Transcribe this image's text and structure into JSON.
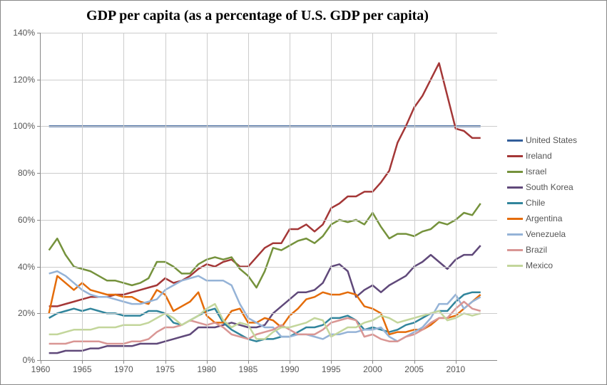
{
  "chart": {
    "type": "line",
    "title": "GDP per capita (as a percentage of U.S. GDP per capita)",
    "title_fontsize": 20,
    "title_fontweight": "bold",
    "font_family_title": "Times New Roman, serif",
    "font_family_axis": "Arial, sans-serif",
    "axis_fontsize": 12,
    "axis_color": "#595959",
    "background_color": "#ffffff",
    "border_color": "#888888",
    "grid_color": "#cccccc",
    "line_width": 2.5,
    "x": {
      "min": 1960,
      "max": 2015,
      "ticks": [
        1960,
        1965,
        1970,
        1975,
        1980,
        1985,
        1990,
        1995,
        2000,
        2005,
        2010
      ]
    },
    "y": {
      "min": 0,
      "max": 140,
      "suffix": "%",
      "ticks": [
        0,
        20,
        40,
        60,
        80,
        100,
        120,
        140
      ]
    },
    "years": [
      1961,
      1962,
      1963,
      1964,
      1965,
      1966,
      1967,
      1968,
      1969,
      1970,
      1971,
      1972,
      1973,
      1974,
      1975,
      1976,
      1977,
      1978,
      1979,
      1980,
      1981,
      1982,
      1983,
      1984,
      1985,
      1986,
      1987,
      1988,
      1989,
      1990,
      1991,
      1992,
      1993,
      1994,
      1995,
      1996,
      1997,
      1998,
      1999,
      2000,
      2001,
      2002,
      2003,
      2004,
      2005,
      2006,
      2007,
      2008,
      2009,
      2010,
      2011,
      2012,
      2013
    ],
    "series": [
      {
        "name": "United States",
        "color": "#325e9a",
        "data": [
          100,
          100,
          100,
          100,
          100,
          100,
          100,
          100,
          100,
          100,
          100,
          100,
          100,
          100,
          100,
          100,
          100,
          100,
          100,
          100,
          100,
          100,
          100,
          100,
          100,
          100,
          100,
          100,
          100,
          100,
          100,
          100,
          100,
          100,
          100,
          100,
          100,
          100,
          100,
          100,
          100,
          100,
          100,
          100,
          100,
          100,
          100,
          100,
          100,
          100,
          100,
          100,
          100
        ]
      },
      {
        "name": "Ireland",
        "color": "#a43737",
        "data": [
          23,
          23,
          24,
          25,
          26,
          27,
          27,
          27,
          28,
          28,
          29,
          30,
          31,
          32,
          35,
          33,
          34,
          36,
          39,
          41,
          40,
          42,
          43,
          40,
          40,
          44,
          48,
          50,
          50,
          56,
          56,
          58,
          55,
          58,
          65,
          67,
          70,
          70,
          72,
          72,
          76,
          81,
          93,
          100,
          108,
          113,
          120,
          127,
          113,
          99,
          98,
          95,
          95
        ]
      },
      {
        "name": "Israel",
        "color": "#75923c",
        "data": [
          47,
          52,
          45,
          40,
          39,
          38,
          36,
          34,
          34,
          33,
          32,
          33,
          35,
          42,
          42,
          40,
          37,
          37,
          41,
          43,
          44,
          43,
          44,
          39,
          36,
          31,
          38,
          48,
          47,
          49,
          51,
          52,
          50,
          53,
          58,
          60,
          59,
          60,
          58,
          63,
          57,
          52,
          54,
          54,
          53,
          55,
          56,
          59,
          58,
          60,
          63,
          62,
          67
        ]
      },
      {
        "name": "South Korea",
        "color": "#60497a",
        "data": [
          3,
          3,
          4,
          4,
          4,
          5,
          5,
          6,
          6,
          6,
          6,
          7,
          7,
          7,
          8,
          9,
          10,
          11,
          14,
          14,
          14,
          15,
          16,
          15,
          14,
          14,
          15,
          20,
          23,
          26,
          29,
          29,
          30,
          33,
          40,
          41,
          38,
          27,
          30,
          32,
          29,
          32,
          34,
          36,
          40,
          42,
          45,
          42,
          39,
          43,
          45,
          45,
          49
        ]
      },
      {
        "name": "Chile",
        "color": "#31859c",
        "data": [
          18,
          20,
          21,
          22,
          21,
          22,
          21,
          20,
          20,
          19,
          19,
          19,
          21,
          21,
          20,
          16,
          15,
          17,
          19,
          21,
          22,
          16,
          13,
          11,
          9,
          8,
          9,
          9,
          10,
          10,
          12,
          14,
          14,
          15,
          18,
          18,
          19,
          17,
          13,
          14,
          13,
          12,
          13,
          15,
          16,
          18,
          20,
          21,
          21,
          25,
          28,
          29,
          29
        ]
      },
      {
        "name": "Argentina",
        "color": "#e46c0a",
        "data": [
          20,
          36,
          33,
          30,
          33,
          30,
          29,
          28,
          28,
          27,
          27,
          25,
          24,
          30,
          28,
          21,
          23,
          25,
          29,
          19,
          16,
          16,
          21,
          22,
          16,
          16,
          18,
          17,
          14,
          19,
          22,
          26,
          27,
          29,
          28,
          28,
          29,
          28,
          23,
          22,
          20,
          11,
          12,
          12,
          13,
          13,
          15,
          18,
          18,
          19,
          22,
          25,
          28
        ]
      },
      {
        "name": "Venezuela",
        "color": "#95b3d7",
        "data": [
          37,
          38,
          36,
          33,
          30,
          28,
          27,
          27,
          26,
          25,
          24,
          24,
          25,
          26,
          30,
          32,
          34,
          35,
          36,
          34,
          34,
          34,
          32,
          24,
          18,
          16,
          14,
          14,
          10,
          10,
          11,
          11,
          10,
          9,
          11,
          11,
          12,
          12,
          13,
          13,
          14,
          10,
          8,
          10,
          12,
          14,
          18,
          24,
          24,
          28,
          22,
          25,
          27
        ]
      },
      {
        "name": "Brazil",
        "color": "#d99694",
        "data": [
          7,
          7,
          7,
          8,
          8,
          8,
          8,
          7,
          7,
          7,
          8,
          8,
          9,
          12,
          14,
          14,
          15,
          17,
          16,
          15,
          16,
          14,
          11,
          10,
          9,
          11,
          12,
          13,
          15,
          13,
          11,
          11,
          11,
          13,
          16,
          17,
          18,
          17,
          10,
          11,
          9,
          8,
          8,
          10,
          11,
          13,
          16,
          18,
          18,
          22,
          25,
          22,
          21
        ]
      },
      {
        "name": "Mexico",
        "color": "#c3d69b",
        "data": [
          11,
          11,
          12,
          13,
          13,
          13,
          14,
          14,
          14,
          15,
          15,
          15,
          16,
          18,
          20,
          18,
          15,
          17,
          19,
          22,
          24,
          17,
          14,
          16,
          15,
          9,
          9,
          12,
          14,
          14,
          15,
          16,
          18,
          17,
          10,
          12,
          14,
          14,
          16,
          17,
          19,
          18,
          16,
          17,
          18,
          19,
          20,
          21,
          17,
          18,
          20,
          19,
          20
        ]
      }
    ]
  }
}
